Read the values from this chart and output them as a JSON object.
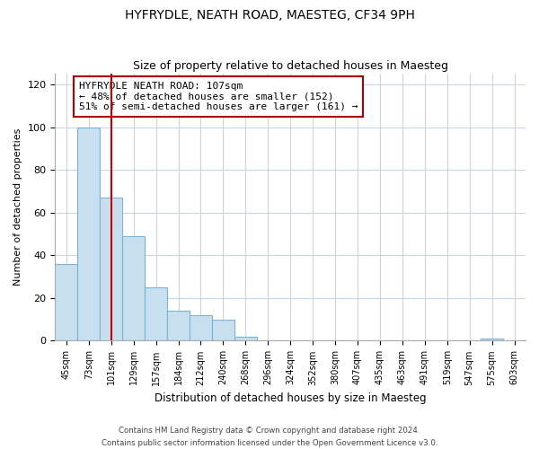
{
  "title": "HYFRYDLE, NEATH ROAD, MAESTEG, CF34 9PH",
  "subtitle": "Size of property relative to detached houses in Maesteg",
  "xlabel": "Distribution of detached houses by size in Maesteg",
  "ylabel": "Number of detached properties",
  "bin_labels": [
    "45sqm",
    "73sqm",
    "101sqm",
    "129sqm",
    "157sqm",
    "184sqm",
    "212sqm",
    "240sqm",
    "268sqm",
    "296sqm",
    "324sqm",
    "352sqm",
    "380sqm",
    "407sqm",
    "435sqm",
    "463sqm",
    "491sqm",
    "519sqm",
    "547sqm",
    "575sqm",
    "603sqm"
  ],
  "bar_heights": [
    36,
    100,
    67,
    49,
    25,
    14,
    12,
    10,
    2,
    0,
    0,
    0,
    0,
    0,
    0,
    0,
    0,
    0,
    0,
    1,
    0
  ],
  "bar_color": "#c8dff0",
  "bar_edge_color": "#7ab4d4",
  "reference_line_x": 2.5,
  "reference_line_label": "HYFRYDLE NEATH ROAD: 107sqm",
  "annotation_line1": "← 48% of detached houses are smaller (152)",
  "annotation_line2": "51% of semi-detached houses are larger (161) →",
  "annotation_box_color": "#ffffff",
  "annotation_box_edge_color": "#aa0000",
  "ylim": [
    0,
    125
  ],
  "yticks": [
    0,
    20,
    40,
    60,
    80,
    100,
    120
  ],
  "footer_line1": "Contains HM Land Registry data © Crown copyright and database right 2024.",
  "footer_line2": "Contains public sector information licensed under the Open Government Licence v3.0.",
  "bg_color": "#ffffff",
  "grid_color": "#c8d4e8",
  "title_fontsize": 10,
  "subtitle_fontsize": 9
}
